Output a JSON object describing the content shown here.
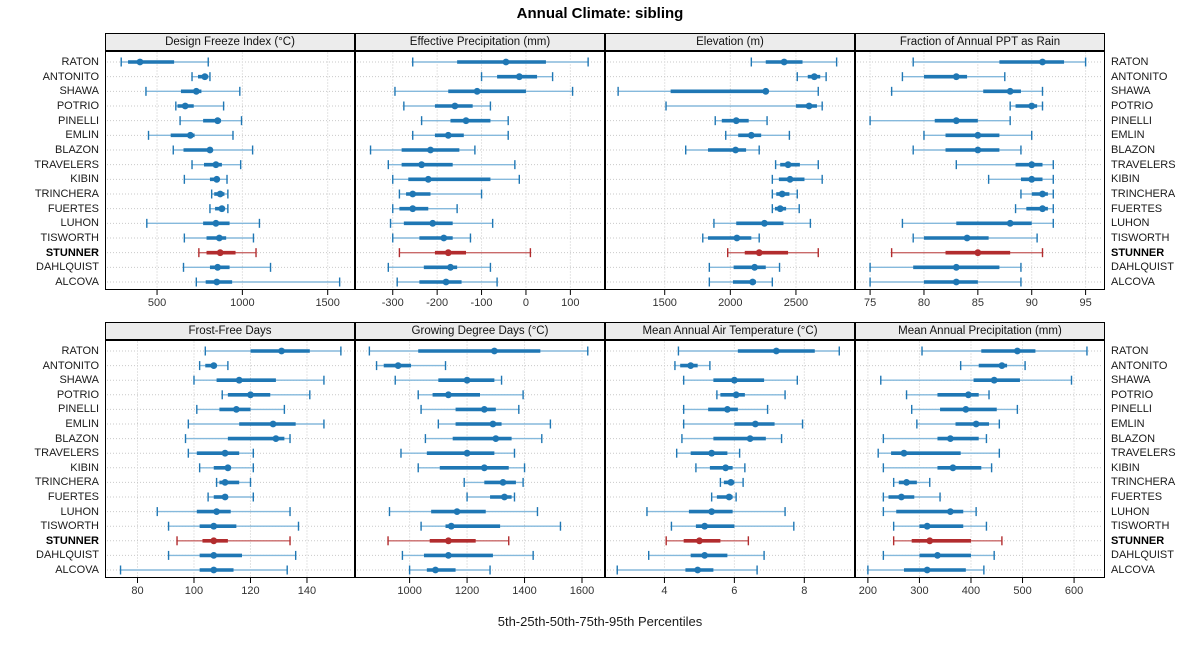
{
  "title": "Annual Climate: sibling",
  "caption": "5th-25th-50th-75th-95th Percentiles",
  "sites": [
    "RATON",
    "ANTONITO",
    "SHAWA",
    "POTRIO",
    "PINELLI",
    "EMLIN",
    "BLAZON",
    "TRAVELERS",
    "KIBIN",
    "TRINCHERA",
    "FUERTES",
    "LUHON",
    "TISWORTH",
    "STUNNER",
    "DAHLQUIST",
    "ALCOVA"
  ],
  "highlight_site": "STUNNER",
  "percentile_order": [
    "5th",
    "25th",
    "50th",
    "75th",
    "95th"
  ],
  "colors": {
    "series": "#1f77b4",
    "series_light": "#85b9dc",
    "highlight": "#b22c2e",
    "highlight_light": "#c96a6a",
    "strip_bg": "#ececec",
    "grid": "#c9c9c9",
    "border": "#000000"
  },
  "chart_data": [
    {
      "type": "dotplot",
      "row": 0,
      "col": 0,
      "title": "Design Freeze Index (°C)",
      "xlim": [
        195,
        1660
      ],
      "ticks": [
        500,
        1000,
        1500
      ],
      "values": [
        [
          290,
          330,
          400,
          600,
          800
        ],
        [
          705,
          740,
          780,
          800,
          810
        ],
        [
          435,
          640,
          730,
          760,
          985
        ],
        [
          610,
          620,
          665,
          715,
          890
        ],
        [
          635,
          770,
          855,
          875,
          995
        ],
        [
          450,
          580,
          695,
          720,
          945
        ],
        [
          595,
          655,
          810,
          825,
          1060
        ],
        [
          705,
          775,
          845,
          880,
          990
        ],
        [
          660,
          810,
          850,
          865,
          910
        ],
        [
          820,
          835,
          870,
          895,
          915
        ],
        [
          810,
          840,
          880,
          895,
          915
        ],
        [
          440,
          770,
          845,
          925,
          1100
        ],
        [
          660,
          790,
          865,
          905,
          1065
        ],
        [
          745,
          790,
          870,
          960,
          1080
        ],
        [
          655,
          810,
          855,
          925,
          1165
        ],
        [
          730,
          785,
          850,
          940,
          1570
        ]
      ]
    },
    {
      "type": "dotplot",
      "row": 0,
      "col": 1,
      "title": "Effective Precipitation (mm)",
      "xlim": [
        -385,
        178
      ],
      "ticks": [
        -300,
        -200,
        -100,
        0,
        100
      ],
      "values": [
        [
          -255,
          -155,
          -45,
          45,
          140
        ],
        [
          -100,
          -65,
          -15,
          25,
          60
        ],
        [
          -295,
          -175,
          -110,
          0,
          105
        ],
        [
          -275,
          -205,
          -160,
          -120,
          -80
        ],
        [
          -235,
          -170,
          -135,
          -80,
          -40
        ],
        [
          -255,
          -205,
          -175,
          -140,
          -40
        ],
        [
          -350,
          -280,
          -215,
          -150,
          -115
        ],
        [
          -310,
          -280,
          -235,
          -165,
          -25
        ],
        [
          -300,
          -265,
          -220,
          -80,
          -15
        ],
        [
          -285,
          -270,
          -255,
          -215,
          -100
        ],
        [
          -300,
          -285,
          -255,
          -220,
          -155
        ],
        [
          -305,
          -275,
          -210,
          -165,
          -75
        ],
        [
          -300,
          -240,
          -185,
          -165,
          -125
        ],
        [
          -285,
          -205,
          -175,
          -135,
          10
        ],
        [
          -310,
          -230,
          -170,
          -155,
          -80
        ],
        [
          -290,
          -240,
          -180,
          -145,
          -65
        ]
      ]
    },
    {
      "type": "dotplot",
      "row": 0,
      "col": 2,
      "title": "Elevation (m)",
      "xlim": [
        1045,
        2950
      ],
      "ticks": [
        1500,
        2000,
        2500
      ],
      "values": [
        [
          2160,
          2270,
          2410,
          2550,
          2810
        ],
        [
          2510,
          2590,
          2640,
          2685,
          2730
        ],
        [
          1145,
          1545,
          2270,
          2290,
          2670
        ],
        [
          1510,
          2500,
          2600,
          2660,
          2700
        ],
        [
          1885,
          1935,
          2045,
          2140,
          2280
        ],
        [
          1965,
          2060,
          2160,
          2235,
          2450
        ],
        [
          1660,
          1830,
          2040,
          2120,
          2220
        ],
        [
          2345,
          2380,
          2440,
          2530,
          2670
        ],
        [
          2320,
          2370,
          2455,
          2565,
          2700
        ],
        [
          2320,
          2350,
          2395,
          2450,
          2510
        ],
        [
          2320,
          2340,
          2380,
          2425,
          2525
        ],
        [
          1875,
          2045,
          2260,
          2405,
          2610
        ],
        [
          1790,
          1830,
          2050,
          2160,
          2220
        ],
        [
          1980,
          2110,
          2220,
          2440,
          2670
        ],
        [
          1840,
          2025,
          2185,
          2270,
          2375
        ],
        [
          1840,
          2020,
          2170,
          2195,
          2320
        ]
      ]
    },
    {
      "type": "dotplot",
      "row": 0,
      "col": 3,
      "title": "Fraction of Annual PPT as Rain",
      "xlim": [
        73.6,
        96.8
      ],
      "ticks": [
        75,
        80,
        85,
        90,
        95
      ],
      "values": [
        [
          79,
          87,
          91,
          93,
          95
        ],
        [
          78,
          80,
          83,
          84,
          87.5
        ],
        [
          77,
          85.5,
          88,
          89,
          91
        ],
        [
          88,
          88.5,
          90,
          90.5,
          91
        ],
        [
          75,
          81,
          83,
          85,
          88
        ],
        [
          80,
          82,
          85,
          87,
          90
        ],
        [
          79,
          82,
          85,
          87,
          89
        ],
        [
          83,
          88.5,
          90,
          91,
          92
        ],
        [
          86,
          89,
          90,
          91,
          92
        ],
        [
          89,
          90,
          91,
          91.5,
          92
        ],
        [
          88.5,
          89.5,
          91,
          91.5,
          92
        ],
        [
          78,
          83,
          88,
          90,
          92
        ],
        [
          79,
          80,
          84,
          86,
          90.5
        ],
        [
          77,
          82,
          85,
          88,
          91
        ],
        [
          75,
          79,
          83,
          87,
          89
        ],
        [
          75,
          80,
          83,
          85,
          89
        ]
      ]
    },
    {
      "type": "dotplot",
      "row": 1,
      "col": 0,
      "title": "Frost-Free Days",
      "xlim": [
        68.5,
        157
      ],
      "ticks": [
        80,
        100,
        120,
        140
      ],
      "values": [
        [
          104,
          120,
          131,
          141,
          152
        ],
        [
          102,
          104,
          107,
          108,
          112
        ],
        [
          100,
          108,
          116,
          129,
          146
        ],
        [
          110,
          112,
          120,
          127,
          141
        ],
        [
          101,
          109,
          115,
          120,
          132
        ],
        [
          98,
          116,
          128,
          136,
          146
        ],
        [
          97,
          112,
          129,
          132,
          134
        ],
        [
          98,
          101,
          111,
          116,
          121
        ],
        [
          102,
          107,
          112,
          113,
          121
        ],
        [
          108,
          109,
          111,
          116,
          120
        ],
        [
          105,
          107,
          111,
          112,
          121
        ],
        [
          87,
          101,
          108,
          113,
          134
        ],
        [
          91,
          102,
          107,
          115,
          137
        ],
        [
          94,
          103,
          107,
          112,
          134
        ],
        [
          91,
          102,
          107,
          117,
          136
        ],
        [
          74,
          102,
          107,
          114,
          133
        ]
      ]
    },
    {
      "type": "dotplot",
      "row": 1,
      "col": 1,
      "title": "Growing Degree Days (°C)",
      "xlim": [
        810,
        1680
      ],
      "ticks": [
        1000,
        1200,
        1400,
        1600
      ],
      "values": [
        [
          860,
          1030,
          1295,
          1455,
          1620
        ],
        [
          885,
          910,
          960,
          1005,
          1125
        ],
        [
          950,
          1100,
          1200,
          1295,
          1320
        ],
        [
          1030,
          1080,
          1135,
          1245,
          1395
        ],
        [
          1040,
          1160,
          1260,
          1300,
          1380
        ],
        [
          1100,
          1160,
          1290,
          1320,
          1490
        ],
        [
          1055,
          1150,
          1300,
          1355,
          1460
        ],
        [
          970,
          1060,
          1200,
          1295,
          1365
        ],
        [
          1030,
          1105,
          1260,
          1345,
          1400
        ],
        [
          1190,
          1260,
          1325,
          1370,
          1395
        ],
        [
          1200,
          1280,
          1330,
          1355,
          1365
        ],
        [
          930,
          1075,
          1165,
          1265,
          1445
        ],
        [
          1040,
          1125,
          1145,
          1315,
          1525
        ],
        [
          925,
          1070,
          1135,
          1230,
          1345
        ],
        [
          975,
          1050,
          1135,
          1290,
          1430
        ],
        [
          1000,
          1060,
          1090,
          1160,
          1280
        ]
      ]
    },
    {
      "type": "dotplot",
      "row": 1,
      "col": 2,
      "title": "Mean Annual Air Temperature (°C)",
      "xlim": [
        2.3,
        9.45
      ],
      "ticks": [
        4,
        6,
        8
      ],
      "values": [
        [
          4.4,
          6.1,
          7.2,
          8.3,
          9.0
        ],
        [
          4.3,
          4.45,
          4.75,
          4.95,
          5.3
        ],
        [
          4.55,
          5.4,
          6.0,
          6.85,
          7.8
        ],
        [
          5.5,
          5.6,
          6.05,
          6.3,
          7.45
        ],
        [
          4.55,
          5.25,
          5.8,
          6.1,
          6.95
        ],
        [
          4.55,
          6.0,
          6.6,
          7.15,
          7.95
        ],
        [
          4.5,
          5.4,
          6.45,
          6.9,
          7.35
        ],
        [
          4.35,
          4.75,
          5.35,
          5.8,
          6.15
        ],
        [
          4.9,
          5.3,
          5.75,
          5.95,
          6.3
        ],
        [
          5.6,
          5.7,
          5.9,
          6.0,
          6.25
        ],
        [
          5.35,
          5.5,
          5.85,
          5.95,
          6.05
        ],
        [
          3.5,
          4.7,
          5.35,
          5.95,
          7.45
        ],
        [
          4.2,
          4.9,
          5.15,
          6.0,
          7.7
        ],
        [
          4.05,
          4.55,
          5.0,
          5.6,
          6.4
        ],
        [
          3.55,
          4.75,
          5.15,
          5.8,
          6.85
        ],
        [
          2.65,
          4.6,
          4.95,
          5.4,
          6.65
        ]
      ]
    },
    {
      "type": "dotplot",
      "row": 1,
      "col": 3,
      "title": "Mean Annual Precipitation (mm)",
      "xlim": [
        175,
        660
      ],
      "ticks": [
        200,
        300,
        400,
        500,
        600
      ],
      "values": [
        [
          305,
          420,
          490,
          525,
          625
        ],
        [
          380,
          415,
          460,
          470,
          505
        ],
        [
          225,
          405,
          445,
          495,
          595
        ],
        [
          275,
          335,
          395,
          415,
          435
        ],
        [
          285,
          340,
          390,
          450,
          490
        ],
        [
          295,
          370,
          410,
          435,
          455
        ],
        [
          230,
          335,
          360,
          415,
          430
        ],
        [
          220,
          245,
          270,
          380,
          455
        ],
        [
          230,
          335,
          365,
          420,
          440
        ],
        [
          250,
          260,
          275,
          295,
          320
        ],
        [
          230,
          240,
          265,
          290,
          340
        ],
        [
          230,
          255,
          360,
          385,
          410
        ],
        [
          250,
          300,
          315,
          385,
          430
        ],
        [
          250,
          285,
          320,
          400,
          460
        ],
        [
          230,
          300,
          335,
          400,
          445
        ],
        [
          200,
          270,
          315,
          390,
          425
        ]
      ]
    }
  ]
}
